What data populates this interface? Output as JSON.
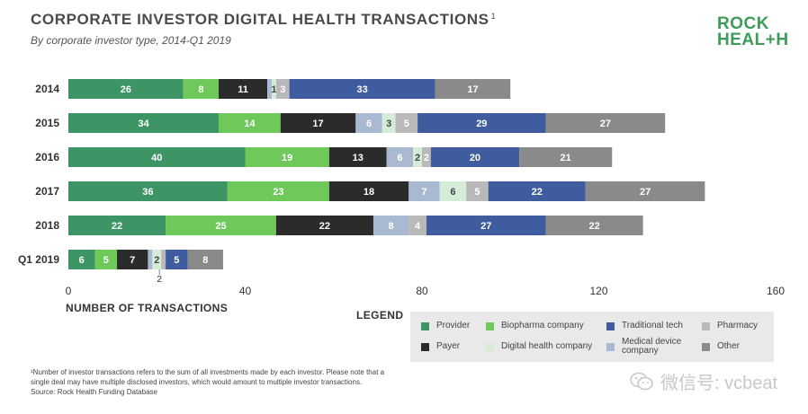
{
  "title": "CORPORATE INVESTOR DIGITAL HEALTH TRANSACTIONS",
  "title_sup": "1",
  "subtitle": "By corporate investor type, 2014-Q1 2019",
  "logo": {
    "line1": "ROCK",
    "line2a": "HEAL",
    "line2b": "+",
    "line2c": "H"
  },
  "legend_title": "LEGEND",
  "footnote": {
    "line1": "¹Number of investor transactions refers to the sum of all investments made by each investor. Please note that a",
    "line2": "single deal may have multiple disclosed investors, which would amount to multiple investor transactions.",
    "line3": "Source: Rock Health Funding Database"
  },
  "watermark": {
    "text": "微信号: vcbeat",
    "icon": "wechat-icon"
  },
  "chart_data": {
    "type": "bar",
    "orientation": "horizontal",
    "stacked": true,
    "title": "CORPORATE INVESTOR DIGITAL HEALTH TRANSACTIONS",
    "subtitle": "By corporate investor type, 2014-Q1 2019",
    "xlabel": "NUMBER OF TRANSACTIONS",
    "ylabel": "",
    "xlim": [
      0,
      160
    ],
    "xticks": [
      0,
      40,
      80,
      120,
      160
    ],
    "categories": [
      "2014",
      "2015",
      "2016",
      "2017",
      "2018",
      "Q1 2019"
    ],
    "legend_position": "bottom-right",
    "grid": false,
    "series": [
      {
        "name": "Provider",
        "color": "#3d9464",
        "label_color": "#ffffff",
        "values": [
          26,
          34,
          40,
          36,
          22,
          6
        ]
      },
      {
        "name": "Payer",
        "color": "#2b2b2b",
        "label_color": "#ffffff",
        "values": [
          11,
          17,
          13,
          18,
          22,
          7
        ]
      },
      {
        "name": "Biopharma company",
        "color": "#6ec85a",
        "label_color": "#ffffff",
        "values": [
          8,
          14,
          19,
          23,
          25,
          5
        ]
      },
      {
        "name": "Digital health company",
        "color": "#d4ecd8",
        "label_color": "#444444",
        "values": [
          1,
          3,
          2,
          6,
          0,
          2
        ]
      },
      {
        "name": "Traditional tech",
        "color": "#3f5c9e",
        "label_color": "#ffffff",
        "values": [
          33,
          29,
          20,
          22,
          27,
          5
        ]
      },
      {
        "name": "Medical device company",
        "color": "#a9b9d2",
        "label_color": "#ffffff",
        "values": [
          1,
          6,
          6,
          7,
          8,
          1
        ]
      },
      {
        "name": "Pharmacy",
        "color": "#b9b9b9",
        "label_color": "#ffffff",
        "values": [
          3,
          5,
          2,
          5,
          4,
          1
        ]
      },
      {
        "name": "Other",
        "color": "#8a8a8a",
        "label_color": "#ffffff",
        "values": [
          17,
          27,
          21,
          27,
          22,
          8
        ]
      }
    ],
    "segment_order": [
      "Provider",
      "Biopharma company",
      "Payer",
      "Medical device company",
      "Digital health company",
      "Pharmacy",
      "Traditional tech",
      "Other"
    ],
    "labels": [
      [
        "26",
        "8",
        "11",
        "",
        "1",
        "3",
        "33",
        "17"
      ],
      [
        "34",
        "14",
        "17",
        "6",
        "3",
        "5",
        "29",
        "27"
      ],
      [
        "40",
        "19",
        "13",
        "6",
        "2",
        "2",
        "20",
        "21"
      ],
      [
        "36",
        "23",
        "18",
        "7",
        "6",
        "5",
        "22",
        "27"
      ],
      [
        "22",
        "25",
        "22",
        "8",
        "",
        "4",
        "27",
        "22"
      ],
      [
        "6",
        "5",
        "7",
        "",
        "2",
        "",
        "5",
        "8"
      ]
    ],
    "annotations": [
      "2"
    ]
  }
}
